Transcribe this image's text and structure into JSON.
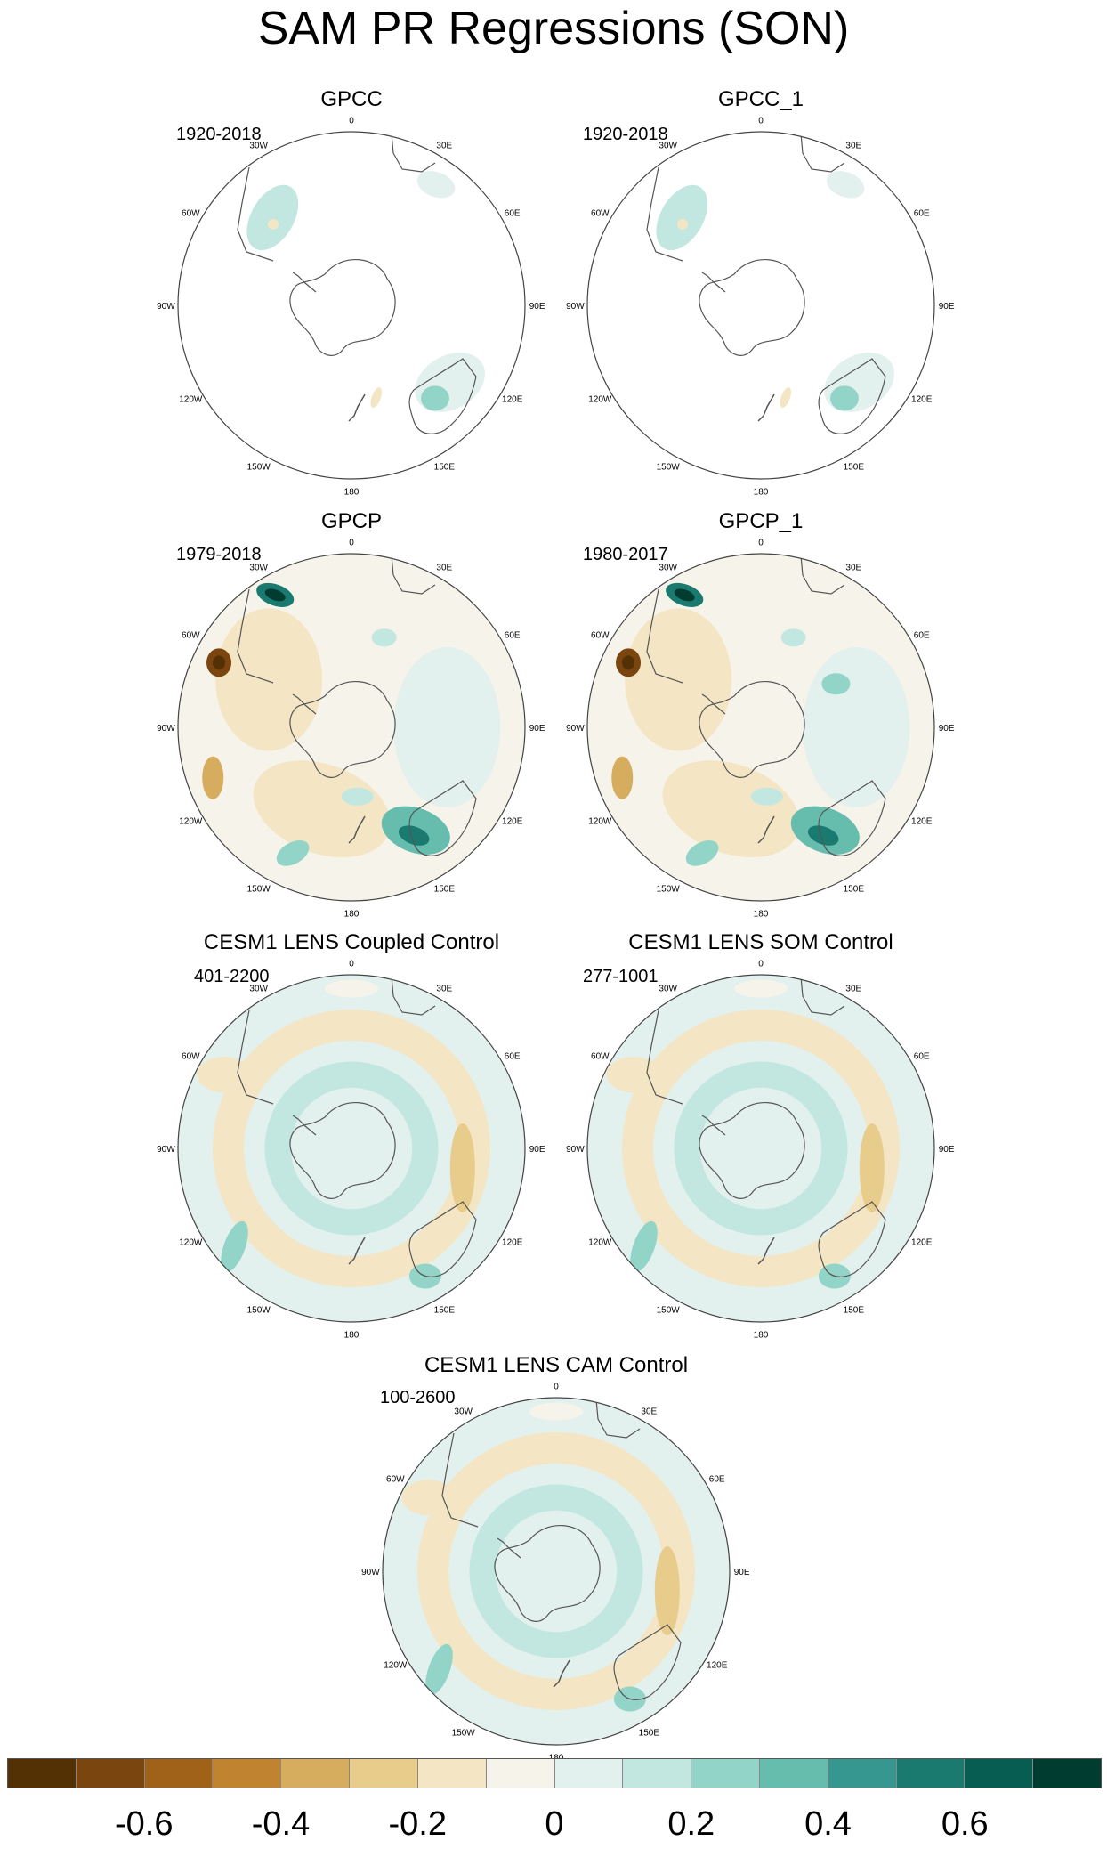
{
  "title": "SAM PR Regressions (SON)",
  "lon_labels": [
    "0",
    "30E",
    "60E",
    "90E",
    "120E",
    "150E",
    "180",
    "150W",
    "120W",
    "90W",
    "60W",
    "30W"
  ],
  "panels": [
    {
      "title": "GPCC",
      "years": "1920-2018",
      "kind": "gpcc"
    },
    {
      "title": "GPCC_1",
      "years": "1920-2018",
      "kind": "gpcc"
    },
    {
      "title": "GPCP",
      "years": "1979-2018",
      "kind": "gpcp"
    },
    {
      "title": "GPCP_1",
      "years": "1980-2017",
      "kind": "gpcp"
    },
    {
      "title": "CESM1 LENS Coupled Control",
      "years": "401-2200",
      "kind": "cesm"
    },
    {
      "title": "CESM1 LENS SOM Control",
      "years": "277-1001",
      "kind": "cesm"
    },
    {
      "title": "CESM1 LENS CAM Control",
      "years": "100-2600",
      "kind": "cesm"
    }
  ],
  "colorbar": {
    "colors": [
      "#543005",
      "#7a450e",
      "#a06218",
      "#c08430",
      "#d6ac5f",
      "#e8cc8c",
      "#f4e6c4",
      "#f5f3ea",
      "#e2f0ee",
      "#c2e7e1",
      "#93d4c8",
      "#66bcad",
      "#35978f",
      "#1a7a70",
      "#085d52",
      "#003c30"
    ],
    "labels": [
      "-0.6",
      "-0.4",
      "-0.2",
      "0",
      "0.2",
      "0.4",
      "0.6"
    ]
  }
}
